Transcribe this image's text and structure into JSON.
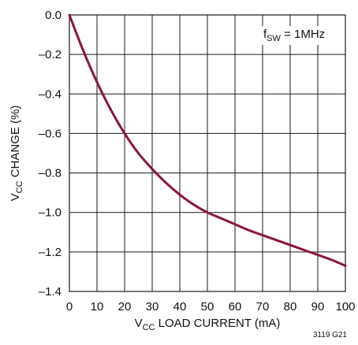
{
  "chart_data": {
    "type": "line",
    "xlabel": {
      "main": "V",
      "sub": "CC",
      "rest": " LOAD CURRENT (mA)"
    },
    "ylabel": {
      "main": "V",
      "sub": "CC",
      "rest": " CHANGE (%)"
    },
    "xlim": [
      0,
      100
    ],
    "ylim": [
      -1.4,
      0
    ],
    "xticks": [
      0,
      10,
      20,
      30,
      40,
      50,
      60,
      70,
      80,
      90,
      100
    ],
    "yticks": [
      0,
      -0.2,
      -0.4,
      -0.6,
      -0.8,
      -1.0,
      -1.2,
      -1.4
    ],
    "xtick_labels": [
      "0",
      "10",
      "20",
      "30",
      "40",
      "50",
      "60",
      "70",
      "80",
      "90",
      "100"
    ],
    "ytick_labels": [
      "0.0",
      "–0.2",
      "–0.4",
      "–0.6",
      "–0.8",
      "–1.0",
      "–1.2",
      "–1.4"
    ],
    "grid": true,
    "annotation": {
      "main": "f",
      "sub": "SW",
      "rest": " = 1MHz"
    },
    "figure_id": "3119 G21",
    "series": [
      {
        "color": "#8b1538",
        "x": [
          0,
          5,
          10,
          15,
          20,
          25,
          30,
          35,
          40,
          45,
          50,
          55,
          60,
          65,
          70,
          75,
          80,
          85,
          90,
          95,
          100
        ],
        "y": [
          0,
          -0.18,
          -0.34,
          -0.48,
          -0.6,
          -0.7,
          -0.78,
          -0.85,
          -0.91,
          -0.96,
          -1.0,
          -1.03,
          -1.06,
          -1.09,
          -1.115,
          -1.14,
          -1.165,
          -1.19,
          -1.215,
          -1.24,
          -1.27
        ]
      }
    ]
  }
}
